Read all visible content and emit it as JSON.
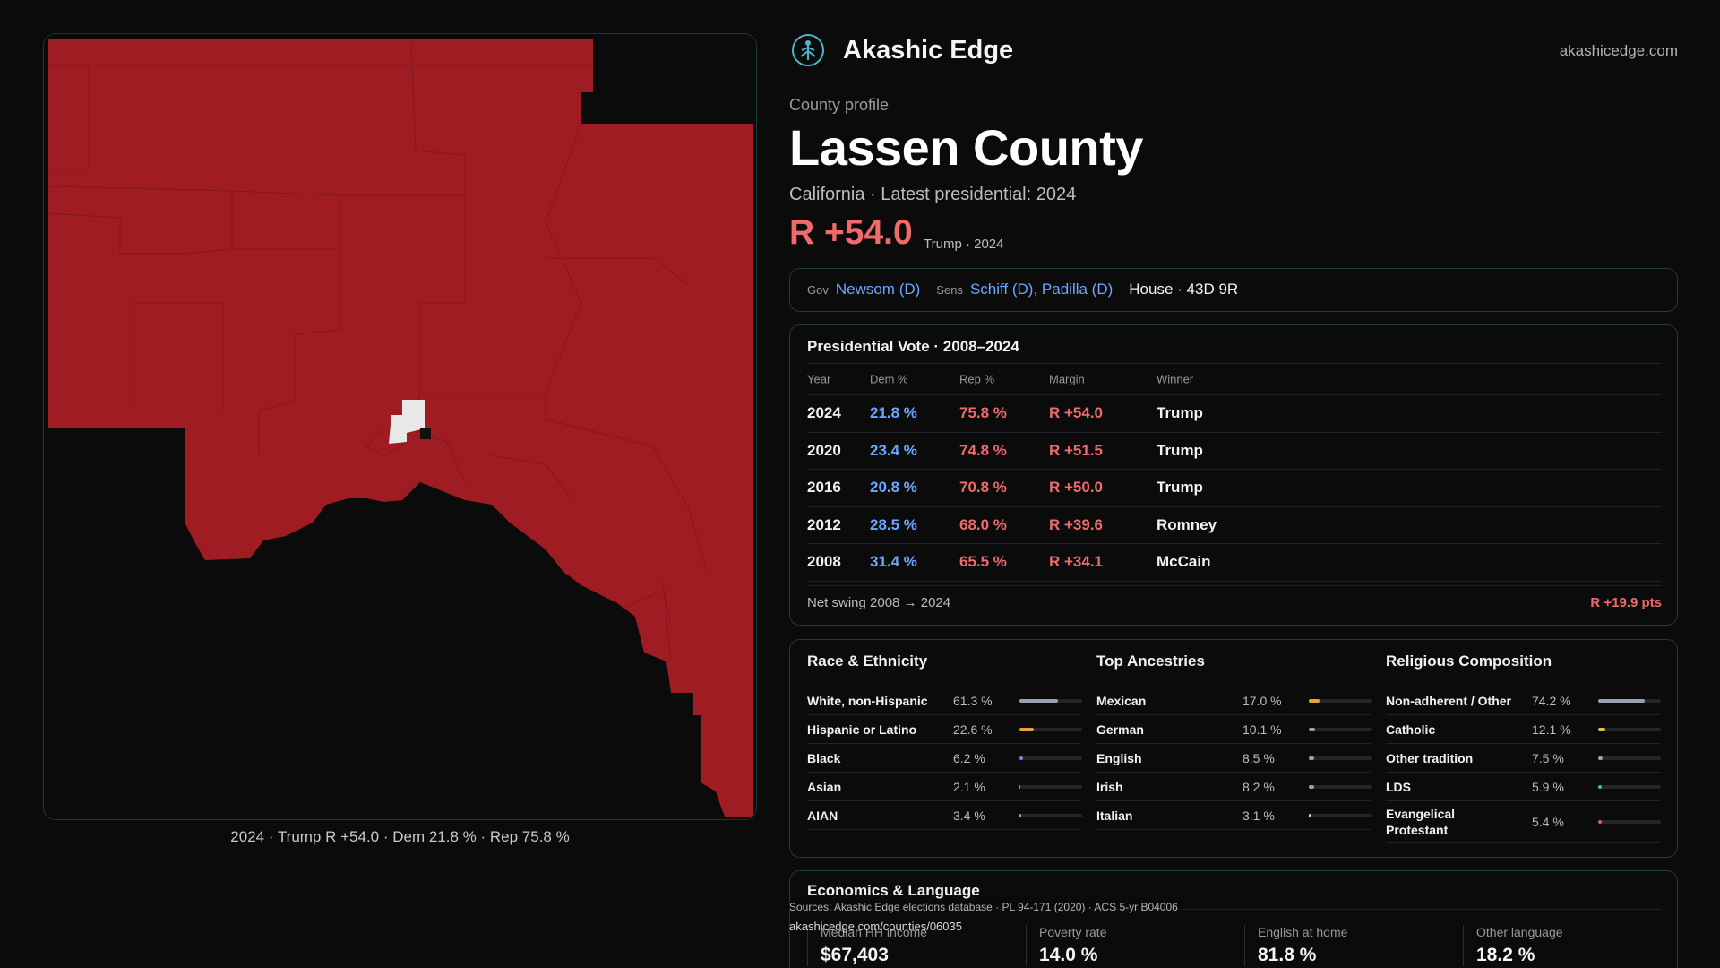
{
  "map": {
    "caption": "2024 · Trump R +54.0 · Dem 21.8 % · Rep 75.8 %",
    "colors": {
      "rep": "#9f1d22",
      "highlight": "#e8e8e8",
      "background": "#0b0b0c"
    }
  },
  "header": {
    "logo_icon": "tree-of-life-icon",
    "brand": "Akashic Edge",
    "domain": "akashicedge.com"
  },
  "profile": {
    "eyebrow": "County profile",
    "title": "Lassen County",
    "subline": "California · Latest presidential: 2024",
    "margin": "R +54.0",
    "margin_note": "Trump · 2024"
  },
  "officials": {
    "gov_label": "Gov",
    "gov": "Newsom (D)",
    "sens_label": "Sens",
    "sens": "Schiff (D), Padilla (D)",
    "house": "House · 43D 9R"
  },
  "votes": {
    "title": "Presidential Vote · 2008–2024",
    "headers": [
      "Year",
      "Dem %",
      "Rep %",
      "Margin",
      "Winner"
    ],
    "rows": [
      {
        "year": "2024",
        "dem": "21.8 %",
        "rep": "75.8 %",
        "margin": "R +54.0",
        "winner": "Trump"
      },
      {
        "year": "2020",
        "dem": "23.4 %",
        "rep": "74.8 %",
        "margin": "R +51.5",
        "winner": "Trump"
      },
      {
        "year": "2016",
        "dem": "20.8 %",
        "rep": "70.8 %",
        "margin": "R +50.0",
        "winner": "Trump"
      },
      {
        "year": "2012",
        "dem": "28.5 %",
        "rep": "68.0 %",
        "margin": "R +39.6",
        "winner": "Romney"
      },
      {
        "year": "2008",
        "dem": "31.4 %",
        "rep": "65.5 %",
        "margin": "R +34.1",
        "winner": "McCain"
      }
    ],
    "swing_label": "Net swing 2008 → 2024",
    "swing_value": "R +19.9 pts"
  },
  "race": {
    "title": "Race & Ethnicity",
    "rows": [
      {
        "name": "White, non-Hispanic",
        "pct": "61.3 %",
        "value": 61.3,
        "color": "#9aa3ad"
      },
      {
        "name": "Hispanic or Latino",
        "pct": "22.6 %",
        "value": 22.6,
        "color": "#e6a23c"
      },
      {
        "name": "Black",
        "pct": "6.2 %",
        "value": 6.2,
        "color": "#8b7cf6"
      },
      {
        "name": "Asian",
        "pct": "2.1 %",
        "value": 2.1,
        "color": "#2ec4a6"
      },
      {
        "name": "AIAN",
        "pct": "3.4 %",
        "value": 3.4,
        "color": "#e0913a"
      }
    ]
  },
  "ancestry": {
    "title": "Top Ancestries",
    "rows": [
      {
        "name": "Mexican",
        "pct": "17.0 %",
        "value": 17.0,
        "color": "#e6a23c"
      },
      {
        "name": "German",
        "pct": "10.1 %",
        "value": 10.1,
        "color": "#9aa3ad"
      },
      {
        "name": "English",
        "pct": "8.5 %",
        "value": 8.5,
        "color": "#9aa3ad"
      },
      {
        "name": "Irish",
        "pct": "8.2 %",
        "value": 8.2,
        "color": "#9aa3ad"
      },
      {
        "name": "Italian",
        "pct": "3.1 %",
        "value": 3.1,
        "color": "#cfcfcf"
      }
    ]
  },
  "religion": {
    "title": "Religious Composition",
    "rows": [
      {
        "name": "Non-adherent / Other",
        "pct": "74.2 %",
        "value": 74.2,
        "color": "#9aa3ad"
      },
      {
        "name": "Catholic",
        "pct": "12.1 %",
        "value": 12.1,
        "color": "#e6c03c"
      },
      {
        "name": "Other tradition",
        "pct": "7.5 %",
        "value": 7.5,
        "color": "#9aa3ad"
      },
      {
        "name": "LDS",
        "pct": "5.9 %",
        "value": 5.9,
        "color": "#2ec4a6"
      },
      {
        "name": "Evangelical Protestant",
        "pct": "5.4 %",
        "value": 5.4,
        "color": "#e05a5a"
      }
    ]
  },
  "econ": {
    "title": "Economics & Language",
    "stats": [
      {
        "label": "Median HH income",
        "value": "$67,403"
      },
      {
        "label": "Poverty rate",
        "value": "14.0 %"
      },
      {
        "label": "English at home",
        "value": "81.8 %"
      },
      {
        "label": "Other language",
        "value": "18.2 %"
      }
    ]
  },
  "footer": {
    "sources": "Sources: Akashic Edge elections database · PL 94-171 (2020) · ACS 5-yr B04006",
    "url": "akashicedge.com/counties/06035"
  }
}
